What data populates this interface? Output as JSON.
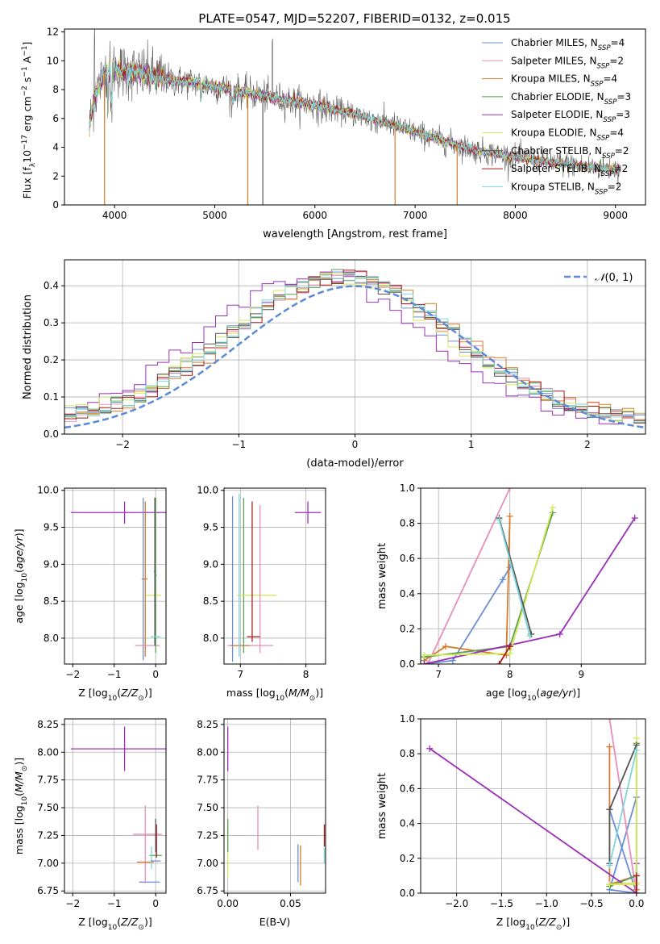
{
  "figure_title": "PLATE=0547, MJD=52207, FIBERID=0132, z=0.015",
  "chart_data": [
    {
      "id": "spectrum",
      "type": "line",
      "xlabel": "wavelength [Angstrom, rest frame]",
      "ylabel": "Flux [f_λ10^-17 erg cm^-2 s^-1 A^-1]",
      "xlim": [
        3500,
        9300
      ],
      "ylim": [
        0,
        12.2
      ],
      "xticks": [
        4000,
        5000,
        6000,
        7000,
        8000,
        9000
      ],
      "yticks": [
        0,
        2,
        4,
        6,
        8,
        10,
        12
      ],
      "grid": false,
      "legend_position": "top-right",
      "data_range": [
        3750,
        9050
      ],
      "continuum": {
        "x": [
          3750,
          3800,
          3900,
          4000,
          4100,
          4200,
          4400,
          4600,
          4800,
          5000,
          5300,
          5600,
          6000,
          6400,
          6800,
          7200,
          7600,
          8000,
          8400,
          8800,
          9050
        ],
        "y": [
          5.5,
          7.5,
          9.2,
          9.5,
          9.2,
          9.2,
          8.9,
          8.6,
          8.5,
          8.2,
          7.8,
          7.4,
          6.9,
          6.3,
          5.5,
          4.6,
          3.8,
          3.3,
          2.9,
          2.6,
          2.5
        ]
      },
      "series": [
        {
          "name": "Chabrier MILES, N_SSP=4",
          "label_main": "Chabrier MILES, N",
          "label_sub": "SSP",
          "label_tail": "=4",
          "color": "#6a8fd6"
        },
        {
          "name": "Salpeter MILES, N_SSP=2",
          "label_main": "Salpeter MILES, N",
          "label_sub": "SSP",
          "label_tail": "=2",
          "color": "#e68fbd"
        },
        {
          "name": "Kroupa MILES, N_SSP=4",
          "label_main": "Kroupa MILES, N",
          "label_sub": "SSP",
          "label_tail": "=4",
          "color": "#d97a29"
        },
        {
          "name": "Chabrier ELODIE, N_SSP=3",
          "label_main": "Chabrier ELODIE, N",
          "label_sub": "SSP",
          "label_tail": "=3",
          "color": "#5e9e55"
        },
        {
          "name": "Salpeter ELODIE, N_SSP=3",
          "label_main": "Salpeter ELODIE, N",
          "label_sub": "SSP",
          "label_tail": "=3",
          "color": "#9b30b8"
        },
        {
          "name": "Kroupa ELODIE, N_SSP=4",
          "label_main": "Kroupa ELODIE, N",
          "label_sub": "SSP",
          "label_tail": "=4",
          "color": "#d4e85a"
        },
        {
          "name": "Chabrier STELIB, N_SSP=2",
          "label_main": "Chabrier STELIB, N",
          "label_sub": "SSP",
          "label_tail": "=2",
          "color": "#555555"
        },
        {
          "name": "Salpeter STELIB, N_SSP=2",
          "label_main": "Salpeter STELIB, N",
          "label_sub": "SSP",
          "label_tail": "=2",
          "color": "#a51c1c"
        },
        {
          "name": "Kroupa STELIB, N_SSP=2",
          "label_main": "Kroupa STELIB, N",
          "label_sub": "SSP",
          "label_tail": "=2",
          "color": "#7ed6da"
        }
      ]
    },
    {
      "id": "residuals",
      "type": "step",
      "xlabel": "(data-model)/error",
      "ylabel": "Normed distribution",
      "xlim": [
        -2.5,
        2.5
      ],
      "ylim": [
        0,
        0.47
      ],
      "xticks": [
        -2,
        -1,
        0,
        1,
        2
      ],
      "yticks": [
        0.0,
        0.1,
        0.2,
        0.3,
        0.4
      ],
      "grid": true,
      "legend_position": "top-right",
      "bins": 50,
      "reference": {
        "name": "N(0,1)",
        "color": "#5b8ad6"
      }
    },
    {
      "id": "age-vs-Z",
      "type": "errorbar",
      "xlabel": "Z [log10(Z/Z⊙)]",
      "ylabel": "age [log10(age/yr)]",
      "xlim": [
        -2.2,
        0.25
      ],
      "ylim": [
        7.65,
        10.03
      ],
      "xticks": [
        -2,
        -1,
        0
      ],
      "yticks": [
        8.0,
        8.5,
        9.0,
        9.5,
        10.0
      ],
      "grid": true,
      "points": [
        {
          "x": -0.75,
          "y": 9.7,
          "xerr": 1.3,
          "yerr": 0.15,
          "color": "#9b30b8"
        },
        {
          "x": -0.3,
          "y": 8.8,
          "xerr": 0.04,
          "yerr": 1.1,
          "color": "#6a8fd6"
        },
        {
          "x": -0.25,
          "y": 8.8,
          "xerr": 0.05,
          "yerr": 1.05,
          "color": "#d97a29"
        },
        {
          "x": -0.2,
          "y": 7.9,
          "xerr": 0.3,
          "yerr": 0.0,
          "color": "#e68fbd"
        },
        {
          "x": -0.05,
          "y": 8.58,
          "xerr": 0.18,
          "yerr": 0.0,
          "color": "#d4e85a"
        },
        {
          "x": 0.0,
          "y": 8.85,
          "xerr": 0.03,
          "yerr": 1.05,
          "color": "#5e9e55"
        },
        {
          "x": -0.02,
          "y": 8.9,
          "xerr": 0.02,
          "yerr": 1.0,
          "color": "#555555"
        },
        {
          "x": 0.0,
          "y": 8.02,
          "xerr": 0.12,
          "yerr": 0.0,
          "color": "#7ed6da"
        }
      ]
    },
    {
      "id": "age-vs-mass",
      "type": "errorbar",
      "xlabel": "mass [log10(M/M⊙)]",
      "ylabel": "",
      "xlim": [
        6.75,
        8.3
      ],
      "ylim": [
        7.65,
        10.03
      ],
      "xticks": [
        7,
        8
      ],
      "yticks": [
        8.0,
        8.5,
        9.0,
        9.5,
        10.0
      ],
      "grid": true,
      "points": [
        {
          "x": 8.03,
          "y": 9.7,
          "xerr": 0.2,
          "yerr": 0.15,
          "color": "#9b30b8"
        },
        {
          "x": 6.88,
          "y": 8.8,
          "xerr": 0.0,
          "yerr": 1.12,
          "color": "#6a8fd6"
        },
        {
          "x": 7.15,
          "y": 7.9,
          "xerr": 0.35,
          "yerr": 0.0,
          "color": "#e68fbd"
        },
        {
          "x": 7.0,
          "y": 7.9,
          "xerr": 0.15,
          "yerr": 0.0,
          "color": "#d97a29"
        },
        {
          "x": 7.05,
          "y": 8.85,
          "xerr": 0.0,
          "yerr": 1.05,
          "color": "#5e9e55"
        },
        {
          "x": 7.25,
          "y": 8.58,
          "xerr": 0.3,
          "yerr": 0.0,
          "color": "#d4e85a"
        },
        {
          "x": 7.3,
          "y": 8.8,
          "xerr": 0.0,
          "yerr": 1.0,
          "color": "#e68fbd"
        },
        {
          "x": 7.18,
          "y": 8.9,
          "xerr": 0.0,
          "yerr": 0.95,
          "color": "#a51c1c"
        },
        {
          "x": 7.2,
          "y": 8.02,
          "xerr": 0.1,
          "yerr": 0.0,
          "color": "#a51c1c"
        },
        {
          "x": 6.98,
          "y": 8.85,
          "xerr": 0.0,
          "yerr": 1.1,
          "color": "#7ed6da"
        }
      ]
    },
    {
      "id": "weight-vs-age",
      "type": "line",
      "xlabel": "age [log10(age/yr)]",
      "ylabel": "mass weight",
      "xlim": [
        6.75,
        9.9
      ],
      "ylim": [
        0,
        1
      ],
      "xticks": [
        7,
        8,
        9
      ],
      "yticks": [
        0.0,
        0.2,
        0.4,
        0.6,
        0.8,
        1.0
      ],
      "grid": true,
      "series": [
        {
          "name": "Chabrier MILES",
          "color": "#6a8fd6",
          "x": [
            6.8,
            7.2,
            7.9,
            8.0
          ],
          "y": [
            0.0,
            0.02,
            0.48,
            0.55
          ]
        },
        {
          "name": "Salpeter MILES",
          "color": "#e68fbd",
          "x": [
            6.85,
            8.0
          ],
          "y": [
            0.0,
            1.0
          ]
        },
        {
          "name": "Kroupa MILES",
          "color": "#d97a29",
          "x": [
            6.8,
            7.1,
            7.95,
            8.0
          ],
          "y": [
            0.02,
            0.1,
            0.05,
            0.84
          ]
        },
        {
          "name": "Chabrier ELODIE",
          "color": "#5e9e55",
          "x": [
            6.8,
            8.0,
            8.6
          ],
          "y": [
            0.04,
            0.1,
            0.86
          ]
        },
        {
          "name": "Salpeter ELODIE",
          "color": "#9b30b8",
          "x": [
            6.8,
            8.7,
            9.75
          ],
          "y": [
            0.0,
            0.17,
            0.83
          ]
        },
        {
          "name": "Kroupa ELODIE",
          "color": "#d4e85a",
          "x": [
            6.8,
            8.0,
            8.6
          ],
          "y": [
            0.05,
            0.06,
            0.89
          ]
        },
        {
          "name": "Chabrier STELIB",
          "color": "#555555",
          "x": [
            7.85,
            8.3
          ],
          "y": [
            0.83,
            0.17
          ]
        },
        {
          "name": "Salpeter STELIB",
          "color": "#a51c1c",
          "x": [
            7.85,
            8.0
          ],
          "y": [
            0.0,
            0.1
          ]
        },
        {
          "name": "Kroupa STELIB",
          "color": "#7ed6da",
          "x": [
            7.85,
            8.28
          ],
          "y": [
            0.82,
            0.16
          ]
        }
      ]
    },
    {
      "id": "mass-vs-Z",
      "type": "errorbar",
      "xlabel": "Z [log10(Z/Z⊙)]",
      "ylabel": "mass [log10(M/M⊙)]",
      "xlim": [
        -2.2,
        0.25
      ],
      "ylim": [
        6.73,
        8.3
      ],
      "xticks": [
        -2,
        -1,
        0
      ],
      "yticks": [
        6.75,
        7.0,
        7.25,
        7.5,
        7.75,
        8.0,
        8.25
      ],
      "grid": true,
      "points": [
        {
          "x": -0.75,
          "y": 8.03,
          "xerr": 1.3,
          "yerr": 0.2,
          "color": "#9b30b8"
        },
        {
          "x": -0.15,
          "y": 6.83,
          "xerr": 0.25,
          "yerr": 0.0,
          "color": "#6a8fd6"
        },
        {
          "x": -0.25,
          "y": 7.17,
          "xerr": 0.0,
          "yerr": 0.35,
          "color": "#e68fbd"
        },
        {
          "x": -0.2,
          "y": 7.26,
          "xerr": 0.35,
          "yerr": 0.0,
          "color": "#e68fbd"
        },
        {
          "x": -0.25,
          "y": 7.01,
          "xerr": 0.2,
          "yerr": 0.0,
          "color": "#d97a29"
        },
        {
          "x": 0.0,
          "y": 7.07,
          "xerr": 0.15,
          "yerr": 0.0,
          "color": "#5e9e55"
        },
        {
          "x": 0.0,
          "y": 7.25,
          "xerr": 0.0,
          "yerr": 0.15,
          "color": "#555555"
        },
        {
          "x": 0.02,
          "y": 7.2,
          "xerr": 0.0,
          "yerr": 0.15,
          "color": "#a51c1c"
        },
        {
          "x": -0.1,
          "y": 7.05,
          "xerr": 0.0,
          "yerr": 0.1,
          "color": "#7ed6da"
        },
        {
          "x": 0.0,
          "y": 7.02,
          "xerr": 0.12,
          "yerr": 0.0,
          "color": "#6a8fd6"
        }
      ]
    },
    {
      "id": "mass-vs-EBV",
      "type": "errorbar",
      "xlabel": "E(B-V)",
      "ylabel": "",
      "xlim": [
        -0.003,
        0.078
      ],
      "ylim": [
        6.73,
        8.3
      ],
      "xticks": [
        0.0,
        0.05
      ],
      "xtick_labels": [
        "0.00",
        "0.05"
      ],
      "yticks": [
        6.75,
        7.0,
        7.25,
        7.5,
        7.75,
        8.0,
        8.25
      ],
      "grid": true,
      "points": [
        {
          "x": 0.0,
          "y": 8.03,
          "xerr": 0.0,
          "yerr": 0.2,
          "color": "#9b30b8"
        },
        {
          "x": 0.0,
          "y": 7.13,
          "xerr": 0.0,
          "yerr": 0.26,
          "color": "#d4e85a"
        },
        {
          "x": 0.0,
          "y": 7.25,
          "xerr": 0.0,
          "yerr": 0.15,
          "color": "#5e9e55"
        },
        {
          "x": 0.024,
          "y": 7.32,
          "xerr": 0.0,
          "yerr": 0.2,
          "color": "#e68fbd"
        },
        {
          "x": 0.056,
          "y": 7.0,
          "xerr": 0.0,
          "yerr": 0.17,
          "color": "#6a8fd6"
        },
        {
          "x": 0.058,
          "y": 6.98,
          "xerr": 0.0,
          "yerr": 0.18,
          "color": "#d97a29"
        },
        {
          "x": 0.077,
          "y": 7.25,
          "xerr": 0.0,
          "yerr": 0.1,
          "color": "#a51c1c"
        },
        {
          "x": 0.077,
          "y": 7.07,
          "xerr": 0.0,
          "yerr": 0.07,
          "color": "#7ed6da"
        }
      ]
    },
    {
      "id": "weight-vs-Z",
      "type": "line",
      "xlabel": "Z [log10(Z/Z⊙)]",
      "ylabel": "mass weight",
      "xlim": [
        -2.4,
        0.1
      ],
      "ylim": [
        0,
        1
      ],
      "xticks": [
        -2.0,
        -1.5,
        -1.0,
        -0.5,
        0.0
      ],
      "xtick_labels": [
        "−2.0",
        "−1.5",
        "−1.0",
        "−0.5",
        "0.0"
      ],
      "yticks": [
        0.0,
        0.2,
        0.4,
        0.6,
        0.8,
        1.0
      ],
      "grid": true,
      "series": [
        {
          "name": "Chabrier MILES",
          "color": "#6a8fd6",
          "x": [
            -0.3,
            0.0,
            -0.3,
            0.0
          ],
          "y": [
            0.48,
            0.0,
            0.02,
            0.55
          ]
        },
        {
          "name": "Salpeter MILES",
          "color": "#e68fbd",
          "x": [
            -0.3,
            0.0
          ],
          "y": [
            1.0,
            0.0
          ]
        },
        {
          "name": "Kroupa MILES",
          "color": "#d97a29",
          "x": [
            -0.3,
            -0.3,
            0.0,
            0.0
          ],
          "y": [
            0.84,
            0.05,
            0.1,
            0.02
          ]
        },
        {
          "name": "Chabrier ELODIE",
          "color": "#5e9e55",
          "x": [
            0.0,
            0.0,
            -0.3
          ],
          "y": [
            0.86,
            0.1,
            0.04
          ]
        },
        {
          "name": "Salpeter ELODIE",
          "color": "#9b30b8",
          "x": [
            -2.3,
            0.0,
            0.0
          ],
          "y": [
            0.83,
            0.0,
            0.17
          ]
        },
        {
          "name": "Kroupa ELODIE",
          "color": "#d4e85a",
          "x": [
            0.0,
            0.0,
            -0.3,
            0.0
          ],
          "y": [
            0.89,
            0.06,
            0.05,
            0.05
          ]
        },
        {
          "name": "Chabrier STELIB",
          "color": "#555555",
          "x": [
            -0.3,
            -0.3,
            0.0
          ],
          "y": [
            0.17,
            0.48,
            0.85
          ]
        },
        {
          "name": "Salpeter STELIB",
          "color": "#a51c1c",
          "x": [
            0.0,
            0.0
          ],
          "y": [
            0.0,
            0.1
          ]
        },
        {
          "name": "Kroupa STELIB",
          "color": "#7ed6da",
          "x": [
            -0.3,
            0.0
          ],
          "y": [
            0.16,
            0.82
          ]
        }
      ]
    }
  ]
}
